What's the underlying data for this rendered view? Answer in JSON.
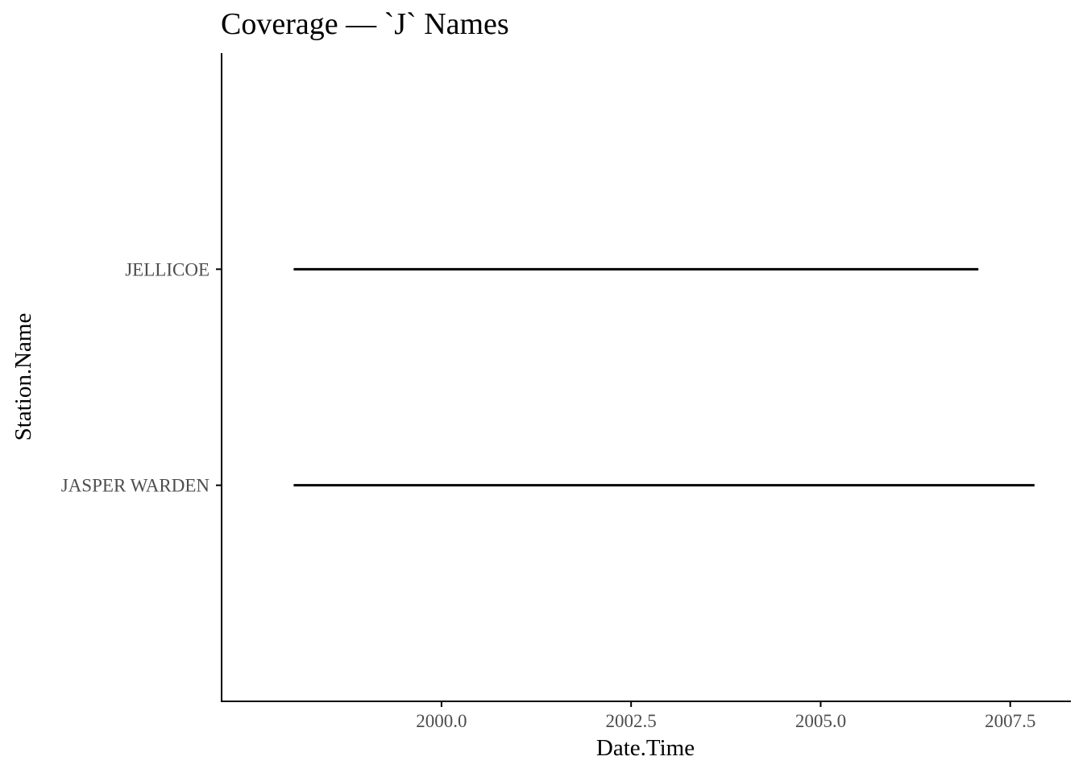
{
  "chart_data": {
    "type": "line",
    "title": "Coverage — `J` Names",
    "xlabel": "Date.Time",
    "ylabel": "Station.Name",
    "xlim": [
      1997.1,
      2008.3
    ],
    "x_ticks": [
      2000.0,
      2002.5,
      2005.0,
      2007.5
    ],
    "x_tick_labels": [
      "2000.0",
      "2002.5",
      "2005.0",
      "2007.5"
    ],
    "categories": [
      "JASPER WARDEN",
      "JELLICOE"
    ],
    "grid": false,
    "legend": "none",
    "series": [
      {
        "category": "JELLICOE",
        "start": 1998.05,
        "end": 2007.08
      },
      {
        "category": "JASPER WARDEN",
        "start": 1998.05,
        "end": 2007.82
      }
    ],
    "colors": {
      "line": "#000000",
      "axis": "#000000",
      "tick_text": "#4d4d4d",
      "title_text": "#000000"
    }
  }
}
